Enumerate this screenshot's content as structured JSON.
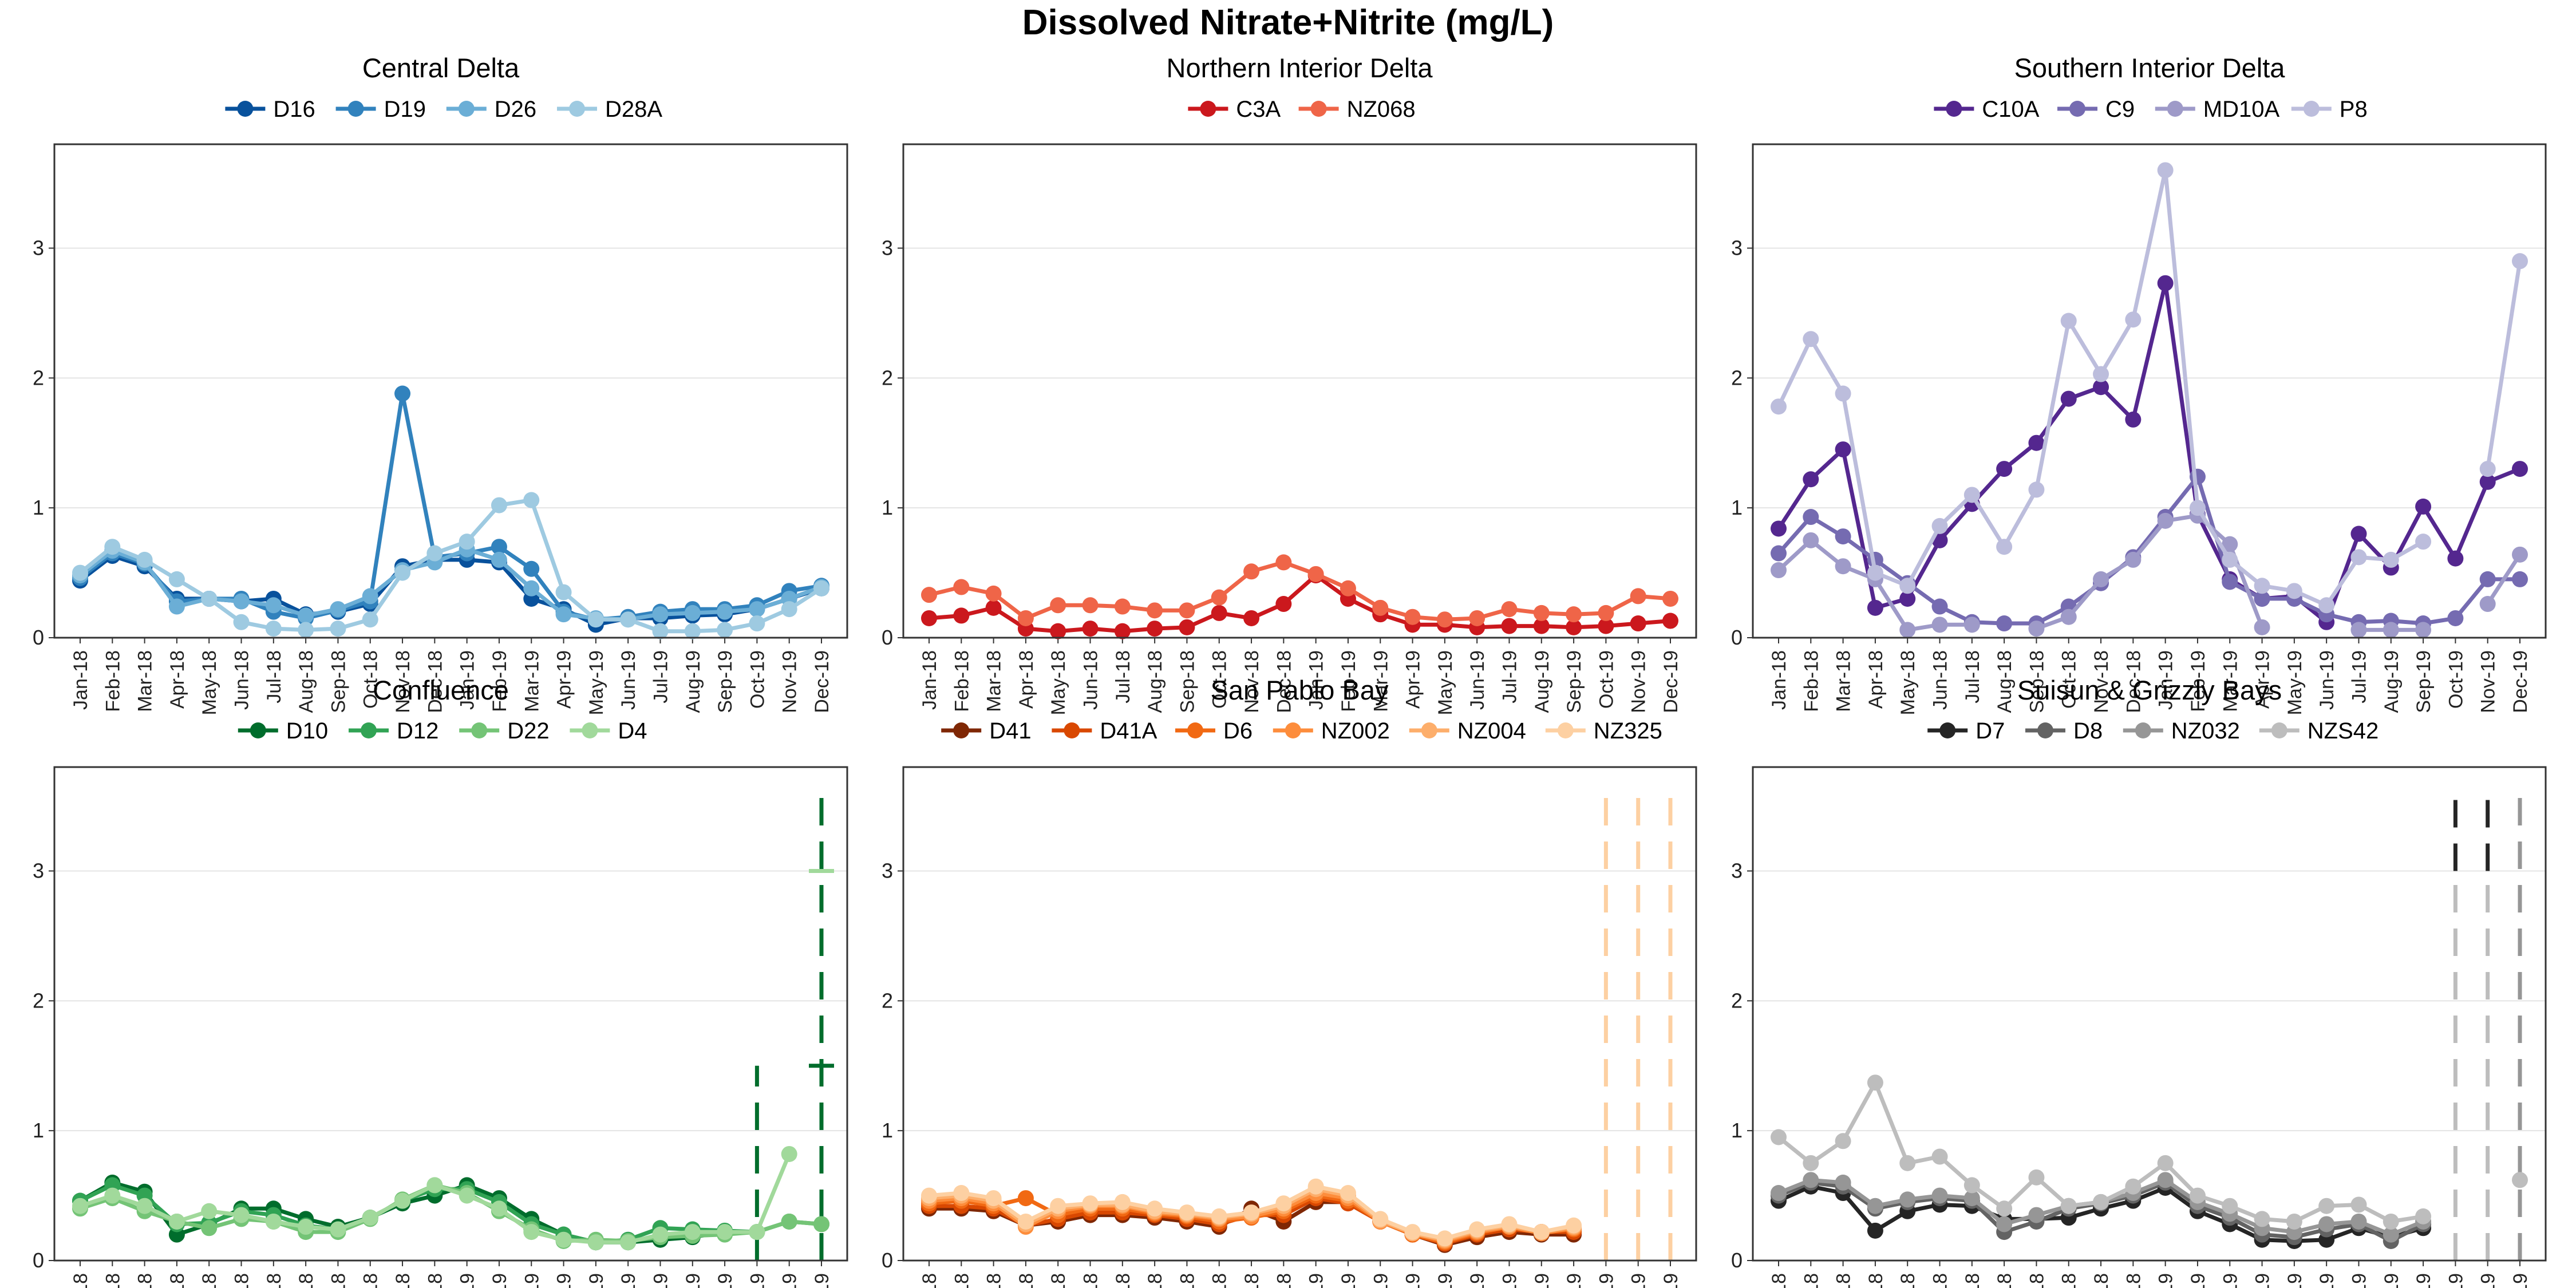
{
  "title": "Dissolved Nitrate+Nitrite (mg/L)",
  "months": [
    "Jan-18",
    "Feb-18",
    "Mar-18",
    "Apr-18",
    "May-18",
    "Jun-18",
    "Jul-18",
    "Aug-18",
    "Sep-18",
    "Oct-18",
    "Nov-18",
    "Dec-18",
    "Jan-19",
    "Feb-19",
    "Mar-19",
    "Apr-19",
    "May-19",
    "Jun-19",
    "Jul-19",
    "Aug-19",
    "Sep-19",
    "Oct-19",
    "Nov-19",
    "Dec-19"
  ],
  "chart_data": [
    {
      "type": "line",
      "title": "Central Delta",
      "ylim": [
        0,
        3.8
      ],
      "yticks": [
        0,
        1,
        2,
        3
      ],
      "grid": true,
      "legend": "top",
      "series": [
        {
          "name": "D16",
          "color": "#08519c",
          "values": [
            0.44,
            0.63,
            0.55,
            0.3,
            0.3,
            0.28,
            0.3,
            0.18,
            0.2,
            0.26,
            0.55,
            0.6,
            0.6,
            0.58,
            0.3,
            0.22,
            0.1,
            0.15,
            0.15,
            0.17,
            0.18,
            0.22,
            0.3,
            0.38
          ]
        },
        {
          "name": "D19",
          "color": "#3182bd",
          "values": [
            0.46,
            0.65,
            0.57,
            0.28,
            0.3,
            0.3,
            0.2,
            0.15,
            0.21,
            0.28,
            1.88,
            0.62,
            0.65,
            0.7,
            0.53,
            0.2,
            0.14,
            0.16,
            0.2,
            0.22,
            0.22,
            0.25,
            0.36,
            0.4
          ]
        },
        {
          "name": "D26",
          "color": "#6baed6",
          "values": [
            0.48,
            0.67,
            0.58,
            0.24,
            0.3,
            0.28,
            0.25,
            0.17,
            0.22,
            0.32,
            0.52,
            0.58,
            0.68,
            0.6,
            0.38,
            0.18,
            0.15,
            0.14,
            0.18,
            0.19,
            0.2,
            0.22,
            0.3,
            0.39
          ]
        },
        {
          "name": "D28A",
          "color": "#9ecae1",
          "values": [
            0.5,
            0.7,
            0.6,
            0.45,
            0.3,
            0.12,
            0.07,
            0.06,
            0.07,
            0.14,
            0.5,
            0.65,
            0.74,
            1.02,
            1.06,
            0.35,
            0.14,
            0.14,
            0.05,
            0.05,
            0.06,
            0.11,
            0.22,
            0.38
          ]
        }
      ]
    },
    {
      "type": "line",
      "title": "Northern Interior Delta",
      "ylim": [
        0,
        3.8
      ],
      "yticks": [
        0,
        1,
        2,
        3
      ],
      "grid": true,
      "legend": "top",
      "series": [
        {
          "name": "C3A",
          "color": "#cb181d",
          "values": [
            0.15,
            0.17,
            0.23,
            0.07,
            0.05,
            0.07,
            0.05,
            0.07,
            0.08,
            0.19,
            0.15,
            0.26,
            0.48,
            0.3,
            0.18,
            0.1,
            0.1,
            0.08,
            0.09,
            0.09,
            0.08,
            0.09,
            0.11,
            0.13
          ]
        },
        {
          "name": "NZ068",
          "color": "#ef6548",
          "values": [
            0.33,
            0.39,
            0.34,
            0.15,
            0.25,
            0.25,
            0.24,
            0.21,
            0.21,
            0.31,
            0.51,
            0.58,
            0.49,
            0.38,
            0.23,
            0.16,
            0.14,
            0.15,
            0.22,
            0.19,
            0.18,
            0.19,
            0.32,
            0.3
          ]
        }
      ]
    },
    {
      "type": "line",
      "title": "Southern Interior Delta",
      "ylim": [
        0,
        3.8
      ],
      "yticks": [
        0,
        1,
        2,
        3
      ],
      "grid": true,
      "legend": "top",
      "series": [
        {
          "name": "C10A",
          "color": "#54278f",
          "values": [
            0.84,
            1.22,
            1.45,
            0.23,
            0.3,
            0.75,
            1.03,
            1.3,
            1.5,
            1.84,
            1.93,
            1.68,
            2.73,
            0.95,
            0.45,
            0.3,
            0.32,
            0.12,
            0.8,
            0.54,
            1.01,
            0.61,
            1.2,
            1.3
          ]
        },
        {
          "name": "C9",
          "color": "#756bb1",
          "values": [
            0.65,
            0.93,
            0.78,
            0.6,
            0.42,
            0.24,
            0.12,
            0.11,
            0.11,
            0.24,
            0.42,
            0.62,
            0.93,
            1.24,
            0.43,
            0.3,
            0.3,
            0.18,
            0.12,
            0.13,
            0.11,
            0.15,
            0.45,
            0.45
          ]
        },
        {
          "name": "MD10A",
          "color": "#9e9ac8",
          "values": [
            0.52,
            0.75,
            0.55,
            0.45,
            0.06,
            0.1,
            0.1,
            null,
            0.07,
            0.16,
            0.45,
            0.6,
            0.9,
            0.94,
            0.72,
            0.08,
            null,
            null,
            0.06,
            0.06,
            0.06,
            null,
            0.26,
            0.64
          ]
        },
        {
          "name": "P8",
          "color": "#bcbddc",
          "values": [
            1.78,
            2.3,
            1.88,
            0.5,
            0.4,
            0.86,
            1.1,
            0.7,
            1.14,
            2.44,
            2.03,
            2.45,
            3.6,
            1.0,
            0.6,
            0.4,
            0.36,
            0.25,
            0.62,
            0.6,
            0.74,
            null,
            1.3,
            2.9
          ]
        }
      ]
    },
    {
      "type": "line",
      "title": "Confluence",
      "ylim": [
        0,
        3.8
      ],
      "yticks": [
        0,
        1,
        2,
        3
      ],
      "grid": true,
      "legend": "top",
      "series": [
        {
          "name": "D10",
          "color": "#006d2c",
          "values": [
            0.46,
            0.6,
            0.53,
            0.2,
            0.28,
            0.4,
            0.4,
            0.32,
            0.26,
            0.33,
            0.44,
            0.5,
            0.58,
            0.48,
            0.32,
            0.2,
            0.14,
            0.14,
            0.16,
            0.18,
            0.22,
            null,
            null,
            null
          ]
        },
        {
          "name": "D12",
          "color": "#31a354",
          "values": [
            0.46,
            0.58,
            0.5,
            0.28,
            0.29,
            0.38,
            0.35,
            0.27,
            0.24,
            0.33,
            0.46,
            0.55,
            0.55,
            0.45,
            0.28,
            0.2,
            0.14,
            0.16,
            0.25,
            0.24,
            0.23,
            0.22,
            0.3,
            0.28
          ]
        },
        {
          "name": "D22",
          "color": "#74c476",
          "values": [
            0.4,
            0.48,
            0.38,
            0.3,
            0.25,
            0.32,
            0.3,
            0.22,
            0.22,
            0.32,
            0.47,
            0.58,
            0.52,
            0.38,
            0.24,
            0.15,
            0.16,
            0.15,
            0.18,
            0.19,
            0.2,
            0.22,
            0.3,
            0.28
          ]
        },
        {
          "name": "D4",
          "color": "#a1d99b",
          "values": [
            0.42,
            0.5,
            0.42,
            0.3,
            0.38,
            0.35,
            0.3,
            0.26,
            0.24,
            0.33,
            0.46,
            0.58,
            0.5,
            0.4,
            0.22,
            0.16,
            0.14,
            0.14,
            0.2,
            0.22,
            0.22,
            0.22,
            0.82,
            null
          ]
        }
      ],
      "annotations": [
        {
          "series": "D10",
          "x": "Oct-19",
          "type": "dashed-bar",
          "y_from": 0,
          "y_to": 1.5
        },
        {
          "series": "D10",
          "x": "Dec-19",
          "type": "dashed-bar",
          "y_from": 0,
          "y_to": 3.6
        },
        {
          "series": "D10",
          "x": "Dec-19",
          "type": "tick",
          "y": 1.5
        },
        {
          "series": "D4",
          "x": "Dec-19",
          "type": "tick",
          "y": 3.0
        }
      ]
    },
    {
      "type": "line",
      "title": "San Pablo Bay",
      "ylim": [
        0,
        3.8
      ],
      "yticks": [
        0,
        1,
        2,
        3
      ],
      "grid": true,
      "legend": "top",
      "series": [
        {
          "name": "D41",
          "color": "#7f2704",
          "values": [
            0.4,
            0.4,
            0.38,
            0.27,
            0.3,
            0.35,
            0.35,
            0.33,
            0.3,
            0.26,
            0.4,
            0.3,
            0.45,
            0.45,
            0.3,
            0.2,
            0.12,
            0.18,
            0.22,
            0.2,
            0.2,
            null,
            null,
            null
          ]
        },
        {
          "name": "D41A",
          "color": "#d94801",
          "values": [
            0.42,
            0.42,
            0.4,
            0.27,
            0.32,
            0.37,
            0.37,
            0.35,
            0.32,
            0.28,
            0.35,
            0.35,
            0.48,
            0.44,
            0.3,
            0.2,
            0.13,
            0.2,
            0.24,
            0.22,
            0.22,
            null,
            null,
            null
          ]
        },
        {
          "name": "D6",
          "color": "#f16913",
          "values": [
            0.44,
            0.46,
            0.42,
            0.48,
            0.35,
            0.4,
            0.4,
            0.36,
            0.34,
            0.3,
            0.33,
            0.38,
            0.5,
            0.46,
            0.3,
            0.2,
            0.14,
            0.21,
            0.26,
            0.22,
            0.24,
            null,
            null,
            null
          ]
        },
        {
          "name": "NZ002",
          "color": "#fd8d3c",
          "values": [
            0.46,
            0.48,
            0.44,
            0.26,
            0.38,
            0.42,
            0.42,
            0.37,
            0.35,
            0.32,
            0.34,
            0.4,
            0.52,
            0.48,
            0.3,
            0.21,
            0.15,
            0.22,
            0.26,
            0.21,
            0.25,
            null,
            null,
            null
          ]
        },
        {
          "name": "NZ004",
          "color": "#fdae6b",
          "values": [
            0.48,
            0.5,
            0.46,
            0.28,
            0.4,
            0.43,
            0.43,
            0.38,
            0.36,
            0.33,
            0.36,
            0.42,
            0.55,
            0.5,
            0.31,
            0.21,
            0.16,
            0.23,
            0.27,
            0.22,
            0.26,
            null,
            null,
            null
          ]
        },
        {
          "name": "NZ325",
          "color": "#fdd0a2",
          "values": [
            0.5,
            0.52,
            0.48,
            0.3,
            0.42,
            0.44,
            0.45,
            0.4,
            0.37,
            0.34,
            0.37,
            0.44,
            0.57,
            0.52,
            0.32,
            0.22,
            0.17,
            0.24,
            0.28,
            0.22,
            0.27,
            null,
            null,
            null
          ]
        }
      ],
      "annotations": [
        {
          "series": "NZ325",
          "x": "Oct-19",
          "type": "dashed-bar",
          "y_from": 0,
          "y_to": 3.6
        },
        {
          "series": "NZ325",
          "x": "Nov-19",
          "type": "dashed-bar",
          "y_from": 0,
          "y_to": 3.6
        },
        {
          "series": "NZ325",
          "x": "Dec-19",
          "type": "dashed-bar",
          "y_from": 0,
          "y_to": 3.6
        }
      ]
    },
    {
      "type": "line",
      "title": "Suisun & Grizzly Bays",
      "ylim": [
        0,
        3.8
      ],
      "yticks": [
        0,
        1,
        2,
        3
      ],
      "grid": true,
      "legend": "top",
      "series": [
        {
          "name": "D7",
          "color": "#252525",
          "values": [
            0.46,
            0.57,
            0.52,
            0.23,
            0.38,
            0.43,
            0.42,
            0.32,
            0.32,
            0.33,
            0.4,
            0.46,
            0.56,
            0.38,
            0.28,
            0.16,
            0.15,
            0.16,
            0.25,
            0.18,
            0.25,
            null,
            null,
            null
          ]
        },
        {
          "name": "D8",
          "color": "#636363",
          "values": [
            0.5,
            0.6,
            0.57,
            0.4,
            0.45,
            0.48,
            0.46,
            0.22,
            0.3,
            0.4,
            0.44,
            0.5,
            0.6,
            0.42,
            0.33,
            0.2,
            0.18,
            0.24,
            0.28,
            0.15,
            0.28,
            null,
            null,
            null
          ]
        },
        {
          "name": "NZ032",
          "color": "#969696",
          "values": [
            0.52,
            0.62,
            0.6,
            0.42,
            0.47,
            0.5,
            0.48,
            0.28,
            0.35,
            0.42,
            0.45,
            0.52,
            0.62,
            0.45,
            0.36,
            0.25,
            0.22,
            0.28,
            0.3,
            0.2,
            0.3,
            null,
            null,
            null
          ]
        },
        {
          "name": "NZS42",
          "color": "#bdbdbd",
          "values": [
            0.95,
            0.75,
            0.92,
            1.37,
            0.75,
            0.8,
            0.58,
            0.4,
            0.64,
            0.42,
            0.45,
            0.57,
            0.75,
            0.5,
            0.42,
            0.32,
            0.3,
            0.42,
            0.43,
            0.3,
            0.34,
            null,
            null,
            0.62
          ]
        }
      ],
      "annotations": [
        {
          "series": "D7",
          "x": "Oct-19",
          "type": "dashed-bar",
          "y_from": 3.0,
          "y_to": 3.6
        },
        {
          "series": "D7",
          "x": "Nov-19",
          "type": "dashed-bar",
          "y_from": 3.0,
          "y_to": 3.6
        },
        {
          "series": "NZS42",
          "x": "Oct-19",
          "type": "dashed-bar",
          "y_from": 0,
          "y_to": 3.0
        },
        {
          "series": "NZS42",
          "x": "Nov-19",
          "type": "dashed-bar",
          "y_from": 0,
          "y_to": 3.0
        },
        {
          "series": "NZ032",
          "x": "Dec-19",
          "type": "dashed-bar",
          "y_from": 0,
          "y_to": 3.6
        }
      ]
    }
  ]
}
